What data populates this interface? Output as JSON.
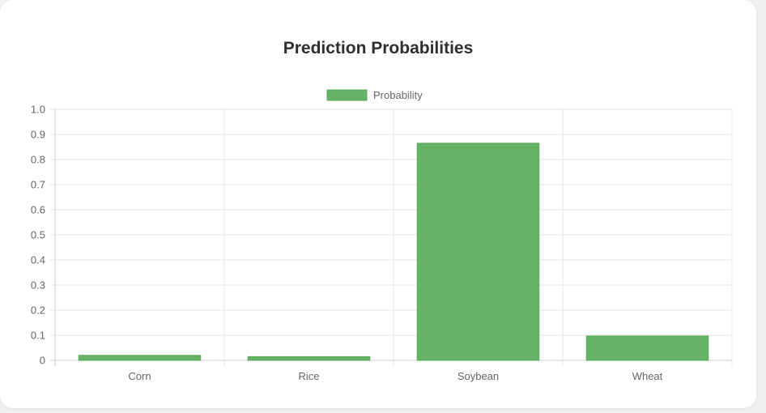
{
  "chart_data": {
    "type": "bar",
    "title": "Prediction Probabilities",
    "categories": [
      "Corn",
      "Rice",
      "Soybean",
      "Wheat"
    ],
    "series": [
      {
        "name": "Probability",
        "values": [
          0.02,
          0.015,
          0.865,
          0.097
        ]
      }
    ],
    "xlabel": "",
    "ylabel": "",
    "ylim": [
      0,
      1.0
    ],
    "yticks": [
      "0",
      "0.1",
      "0.2",
      "0.3",
      "0.4",
      "0.5",
      "0.6",
      "0.7",
      "0.8",
      "0.9",
      "1.0"
    ],
    "grid": true,
    "legend_position": "top-center",
    "colors": {
      "bar_fill": "#66b266",
      "bar_stroke": "#5aa95a",
      "grid": "#e5e5e5",
      "axis": "#cccccc"
    }
  }
}
